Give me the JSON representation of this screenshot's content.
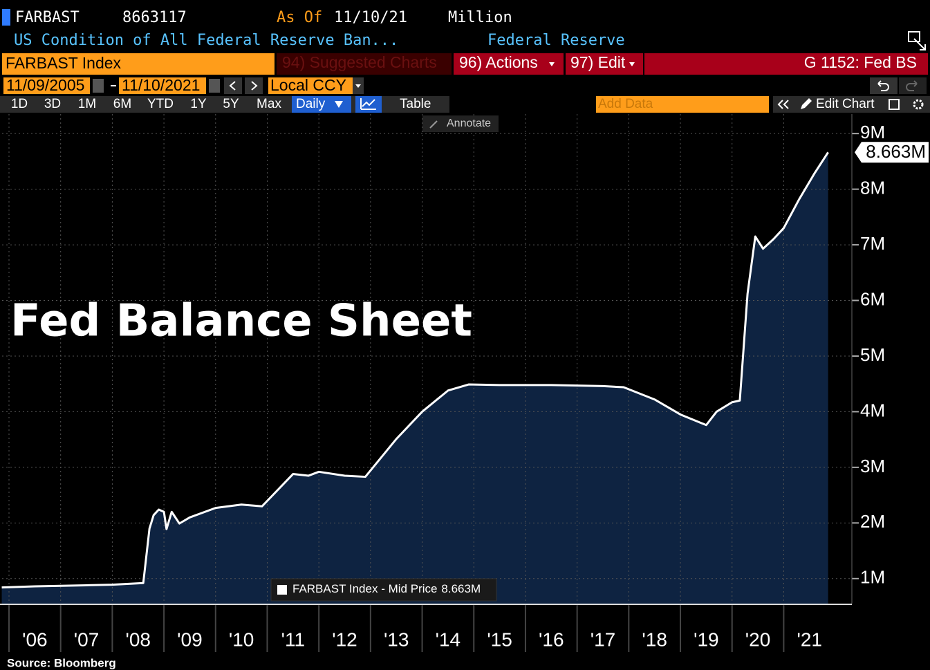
{
  "header": {
    "ticker": "FARBAST",
    "last": "8663117",
    "as_of_label": "As Of",
    "as_of": "11/10/21",
    "units": "Million",
    "description": "US Condition of All Federal Reserve Ban...",
    "source_name": "Federal Reserve"
  },
  "toolbar": {
    "security": "FARBAST Index",
    "suggested": "94) Suggested Charts",
    "actions": "96) Actions",
    "edit": "97) Edit",
    "page": "G 1152: Fed BS"
  },
  "dates": {
    "start": "11/09/2005",
    "end": "11/10/2021",
    "currency": "Local CCY"
  },
  "ranges": [
    "1D",
    "3D",
    "1M",
    "6M",
    "YTD",
    "1Y",
    "5Y",
    "Max"
  ],
  "frequency": "Daily",
  "table": "Table",
  "add_data": "Add Data",
  "edit_chart": "Edit Chart",
  "annotate": "Annotate",
  "chart_data": {
    "type": "area",
    "annotation": "Fed Balance Sheet",
    "source": "Source: Bloomberg",
    "x": [
      2005.86,
      2006.5,
      2007.5,
      2008.0,
      2008.6,
      2008.72,
      2008.8,
      2008.9,
      2009.0,
      2009.05,
      2009.15,
      2009.3,
      2009.5,
      2010.0,
      2010.5,
      2010.9,
      2011.5,
      2011.8,
      2012.0,
      2012.5,
      2012.9,
      2013.5,
      2014.0,
      2014.5,
      2014.9,
      2015.5,
      2016.5,
      2017.5,
      2017.9,
      2018.5,
      2019.0,
      2019.5,
      2019.7,
      2020.0,
      2020.15,
      2020.3,
      2020.45,
      2020.6,
      2020.8,
      2021.0,
      2021.3,
      2021.6,
      2021.86
    ],
    "series": [
      {
        "name": "FARBAST Index - Mid Price",
        "color": "#ffffff",
        "area_color": "#0e2341",
        "values": [
          0.84,
          0.86,
          0.88,
          0.89,
          0.92,
          1.9,
          2.14,
          2.24,
          2.2,
          1.89,
          2.2,
          1.99,
          2.1,
          2.27,
          2.33,
          2.3,
          2.88,
          2.85,
          2.92,
          2.85,
          2.83,
          3.51,
          4.0,
          4.38,
          4.49,
          4.48,
          4.48,
          4.46,
          4.44,
          4.22,
          3.95,
          3.76,
          4.0,
          4.17,
          4.2,
          6.12,
          7.15,
          6.93,
          7.1,
          7.3,
          7.82,
          8.29,
          8.663
        ]
      }
    ],
    "last_price": {
      "value": 8.663,
      "label": "8.663M"
    },
    "xlim": [
      2005.866,
      2022.32
    ],
    "ylim": [
      0.55,
      9.35
    ],
    "xticks": [
      {
        "value": 2006,
        "label": "'06"
      },
      {
        "value": 2007,
        "label": "'07"
      },
      {
        "value": 2008,
        "label": "'08"
      },
      {
        "value": 2009,
        "label": "'09"
      },
      {
        "value": 2010,
        "label": "'10"
      },
      {
        "value": 2011,
        "label": "'11"
      },
      {
        "value": 2012,
        "label": "'12"
      },
      {
        "value": 2013,
        "label": "'13"
      },
      {
        "value": 2014,
        "label": "'14"
      },
      {
        "value": 2015,
        "label": "'15"
      },
      {
        "value": 2016,
        "label": "'16"
      },
      {
        "value": 2017,
        "label": "'17"
      },
      {
        "value": 2018,
        "label": "'18"
      },
      {
        "value": 2019,
        "label": "'19"
      },
      {
        "value": 2020,
        "label": "'20"
      },
      {
        "value": 2021,
        "label": "'21"
      }
    ],
    "yticks": [
      {
        "value": 1,
        "label": "1M"
      },
      {
        "value": 2,
        "label": "2M"
      },
      {
        "value": 3,
        "label": "3M"
      },
      {
        "value": 4,
        "label": "4M"
      },
      {
        "value": 5,
        "label": "5M"
      },
      {
        "value": 6,
        "label": "6M"
      },
      {
        "value": 7,
        "label": "7M"
      },
      {
        "value": 8,
        "label": "8M"
      },
      {
        "value": 9,
        "label": "9M"
      }
    ],
    "grid": true
  }
}
